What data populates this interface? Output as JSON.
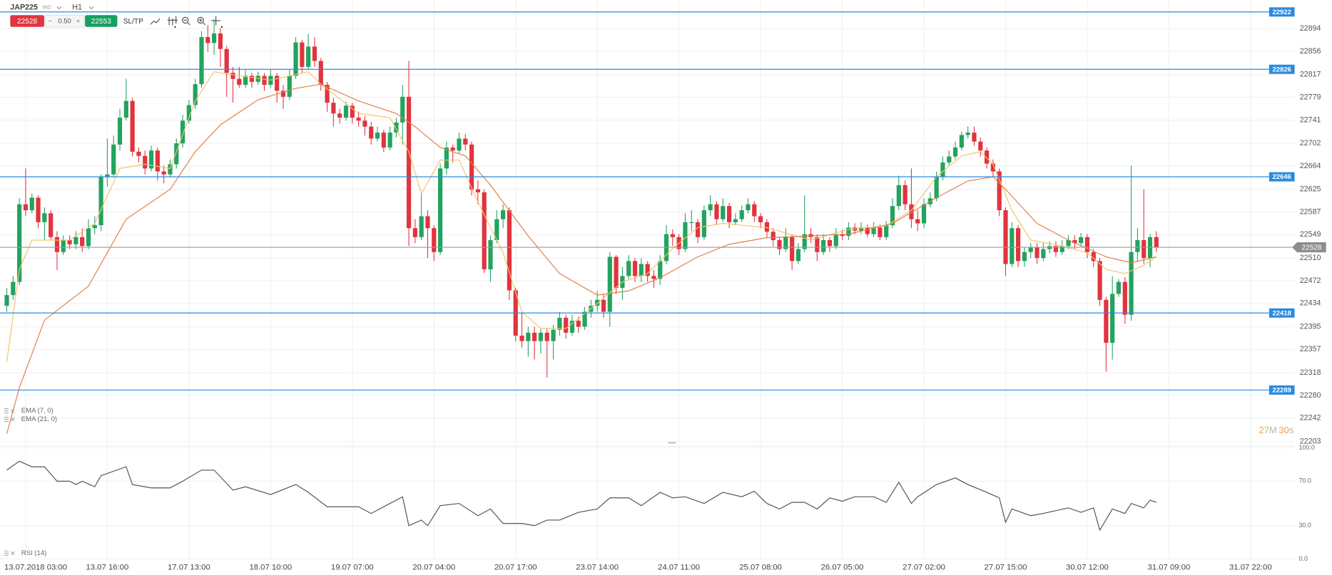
{
  "header": {
    "symbol": "JAP225",
    "badge": "IND",
    "timeframe": "H1",
    "sell": 22528,
    "spread": "0.50",
    "buy": 22553,
    "sltp": "SL/TP",
    "countdown": [
      "27",
      "M",
      "30",
      "s"
    ]
  },
  "chart_data": [
    {
      "type": "candlestick",
      "open": [
        22430,
        22448,
        22470,
        22600,
        22590,
        22611,
        22570,
        22585,
        22545,
        22520,
        22540,
        22533,
        22545,
        22530,
        22560,
        22565,
        22646,
        22650,
        22700,
        22745,
        22773,
        22688,
        22681,
        22660,
        22690,
        22655,
        22650,
        22667,
        22702,
        22740,
        22766,
        22801,
        22880,
        22870,
        22886,
        22860,
        22820,
        22810,
        22800,
        22815,
        22805,
        22815,
        22800,
        22815,
        22790,
        22780,
        22815,
        22871,
        22830,
        22864,
        22840,
        22800,
        22770,
        22752,
        22745,
        22765,
        22745,
        22740,
        22730,
        22710,
        22720,
        22695,
        22720,
        22737,
        22780,
        22560,
        22545,
        22580,
        22560,
        22520,
        22660,
        22695,
        22690,
        22710,
        22700,
        22625,
        22620,
        22491,
        22540,
        22575,
        22590,
        22456,
        22380,
        22371,
        22385,
        22371,
        22385,
        22371,
        22390,
        22410,
        22385,
        22405,
        22395,
        22420,
        22430,
        22440,
        22420,
        22512,
        22460,
        22480,
        22505,
        22480,
        22500,
        22480,
        22475,
        22505,
        22550,
        22545,
        22525,
        22570,
        22570,
        22545,
        22590,
        22600,
        22575,
        22597,
        22570,
        22575,
        22590,
        22600,
        22580,
        22570,
        22554,
        22540,
        22525,
        22545,
        22505,
        22525,
        22550,
        22545,
        22520,
        22540,
        22530,
        22550,
        22547,
        22561,
        22556,
        22561,
        22550,
        22561,
        22545,
        22565,
        22597,
        22632,
        22600,
        22575,
        22568,
        22600,
        22610,
        22646,
        22670,
        22680,
        22695,
        22716,
        22720,
        22705,
        22690,
        22668,
        22655,
        22590,
        22500,
        22560,
        22505,
        22520,
        22528,
        22510,
        22525,
        22530,
        22520,
        22530,
        22540,
        22535,
        22545,
        22520,
        22505,
        22440,
        22368,
        22450,
        22470,
        22415,
        22520,
        22540,
        22510,
        22545
      ],
      "high": [
        22460,
        22480,
        22610,
        22660,
        22618,
        22615,
        22595,
        22590,
        22555,
        22548,
        22548,
        22555,
        22560,
        22575,
        22580,
        22650,
        22710,
        22715,
        22760,
        22810,
        22778,
        22695,
        22690,
        22698,
        22695,
        22665,
        22675,
        22710,
        22750,
        22775,
        22810,
        22890,
        22900,
        22910,
        22895,
        22865,
        22830,
        22830,
        22825,
        22820,
        22822,
        22820,
        22825,
        22820,
        22800,
        22825,
        22880,
        22875,
        22885,
        22880,
        22845,
        22805,
        22778,
        22760,
        22772,
        22770,
        22755,
        22748,
        22738,
        22730,
        22725,
        22730,
        22745,
        22800,
        22840,
        22575,
        22620,
        22590,
        22565,
        22668,
        22705,
        22700,
        22720,
        22718,
        22705,
        22640,
        22625,
        22548,
        22590,
        22600,
        22595,
        22460,
        22420,
        22395,
        22395,
        22392,
        22392,
        22398,
        22420,
        22415,
        22415,
        22412,
        22428,
        22440,
        22455,
        22450,
        22520,
        22515,
        22495,
        22515,
        22510,
        22510,
        22505,
        22490,
        22515,
        22565,
        22558,
        22550,
        22585,
        22590,
        22575,
        22598,
        22615,
        22605,
        22610,
        22602,
        22585,
        22598,
        22610,
        22605,
        22585,
        22575,
        22560,
        22545,
        22560,
        22550,
        22535,
        22615,
        22560,
        22550,
        22550,
        22545,
        22560,
        22558,
        22570,
        22568,
        22570,
        22566,
        22570,
        22566,
        22572,
        22610,
        22648,
        22640,
        22660,
        22590,
        22610,
        22620,
        22655,
        22680,
        22690,
        22705,
        22722,
        22730,
        22730,
        22712,
        22695,
        22675,
        22660,
        22595,
        22570,
        22565,
        22528,
        22535,
        22535,
        22535,
        22538,
        22538,
        22540,
        22548,
        22548,
        22552,
        22550,
        22525,
        22510,
        22445,
        22480,
        22475,
        22478,
        22665,
        22560,
        22625,
        22550,
        22555
      ],
      "low": [
        22420,
        22440,
        22465,
        22580,
        22585,
        22560,
        22540,
        22540,
        22490,
        22515,
        22525,
        22525,
        22520,
        22525,
        22550,
        22555,
        22630,
        22645,
        22690,
        22740,
        22680,
        22670,
        22650,
        22655,
        22640,
        22635,
        22645,
        22660,
        22695,
        22735,
        22760,
        22795,
        22855,
        22850,
        22830,
        22780,
        22770,
        22795,
        22795,
        22795,
        22800,
        22790,
        22795,
        22770,
        22760,
        22775,
        22810,
        22820,
        22825,
        22830,
        22790,
        22755,
        22730,
        22735,
        22740,
        22735,
        22730,
        22715,
        22700,
        22705,
        22688,
        22690,
        22712,
        22700,
        22530,
        22535,
        22540,
        22510,
        22505,
        22515,
        22650,
        22670,
        22685,
        22690,
        22615,
        22600,
        22485,
        22470,
        22535,
        22560,
        22440,
        22370,
        22360,
        22345,
        22340,
        22350,
        22310,
        22340,
        22380,
        22375,
        22380,
        22385,
        22390,
        22410,
        22420,
        22410,
        22395,
        22450,
        22440,
        22475,
        22470,
        22470,
        22470,
        22460,
        22465,
        22500,
        22530,
        22515,
        22520,
        22555,
        22535,
        22540,
        22580,
        22565,
        22570,
        22560,
        22565,
        22570,
        22585,
        22570,
        22560,
        22545,
        22530,
        22515,
        22520,
        22490,
        22500,
        22520,
        22535,
        22505,
        22515,
        22520,
        22525,
        22540,
        22540,
        22550,
        22550,
        22545,
        22545,
        22540,
        22540,
        22560,
        22590,
        22590,
        22560,
        22555,
        22560,
        22595,
        22605,
        22640,
        22665,
        22675,
        22690,
        22710,
        22698,
        22680,
        22660,
        22645,
        22580,
        22480,
        22495,
        22495,
        22495,
        22510,
        22500,
        22505,
        22518,
        22512,
        22515,
        22525,
        22525,
        22530,
        22510,
        22495,
        22430,
        22320,
        22340,
        22445,
        22400,
        22405,
        22505,
        22500,
        22495,
        22520
      ],
      "close": [
        22448,
        22470,
        22600,
        22590,
        22611,
        22570,
        22585,
        22545,
        22520,
        22540,
        22533,
        22545,
        22530,
        22560,
        22565,
        22646,
        22650,
        22700,
        22745,
        22773,
        22688,
        22681,
        22660,
        22690,
        22655,
        22650,
        22667,
        22702,
        22740,
        22766,
        22801,
        22880,
        22870,
        22886,
        22860,
        22820,
        22810,
        22800,
        22815,
        22805,
        22815,
        22800,
        22815,
        22790,
        22780,
        22815,
        22871,
        22830,
        22864,
        22840,
        22800,
        22770,
        22752,
        22745,
        22765,
        22745,
        22740,
        22730,
        22710,
        22720,
        22695,
        22720,
        22737,
        22780,
        22560,
        22545,
        22580,
        22560,
        22520,
        22660,
        22695,
        22690,
        22710,
        22700,
        22625,
        22620,
        22491,
        22540,
        22575,
        22590,
        22456,
        22380,
        22371,
        22385,
        22371,
        22385,
        22371,
        22390,
        22410,
        22385,
        22405,
        22395,
        22420,
        22430,
        22440,
        22420,
        22512,
        22460,
        22480,
        22505,
        22480,
        22500,
        22480,
        22475,
        22505,
        22550,
        22545,
        22525,
        22570,
        22570,
        22545,
        22590,
        22600,
        22575,
        22597,
        22570,
        22575,
        22590,
        22600,
        22580,
        22570,
        22554,
        22540,
        22525,
        22545,
        22505,
        22525,
        22550,
        22545,
        22520,
        22540,
        22530,
        22550,
        22547,
        22561,
        22556,
        22561,
        22550,
        22561,
        22545,
        22565,
        22597,
        22632,
        22600,
        22575,
        22568,
        22600,
        22610,
        22646,
        22670,
        22680,
        22695,
        22716,
        22720,
        22705,
        22690,
        22668,
        22655,
        22590,
        22500,
        22560,
        22505,
        22520,
        22528,
        22510,
        22525,
        22530,
        22520,
        22530,
        22540,
        22535,
        22545,
        22520,
        22505,
        22440,
        22368,
        22450,
        22470,
        22415,
        22520,
        22540,
        22510,
        22545,
        22528
      ],
      "up_color": "#22a35f",
      "down_color": "#e2333e",
      "series": [
        {
          "name": "EMA (7, 0)",
          "color": "#f2c46d",
          "x": [
            0,
            2,
            4,
            10,
            14,
            18,
            22,
            26,
            30,
            33,
            37,
            42,
            48,
            50,
            56,
            61,
            64,
            66,
            69,
            72,
            75,
            79,
            82,
            85,
            89,
            94,
            98,
            102,
            106,
            110,
            114,
            121,
            128,
            134,
            140,
            144,
            148,
            152,
            155,
            157,
            160,
            163,
            168,
            172,
            175,
            178,
            181,
            183
          ],
          "values": [
            22336,
            22491,
            22540,
            22540,
            22568,
            22660,
            22667,
            22660,
            22773,
            22822,
            22815,
            22808,
            22822,
            22801,
            22752,
            22745,
            22688,
            22618,
            22674,
            22674,
            22604,
            22519,
            22420,
            22392,
            22392,
            22434,
            22470,
            22484,
            22526,
            22561,
            22568,
            22561,
            22540,
            22558,
            22564,
            22590,
            22646,
            22681,
            22688,
            22667,
            22590,
            22540,
            22530,
            22519,
            22491,
            22484,
            22498,
            22512
          ]
        },
        {
          "name": "EMA (21, 0)",
          "color": "#e0804a",
          "x": [
            0,
            2,
            6,
            13,
            19,
            26,
            30,
            34,
            40,
            46,
            50,
            56,
            62,
            65,
            69,
            73,
            77,
            83,
            88,
            94,
            99,
            104,
            110,
            115,
            121,
            128,
            134,
            141,
            148,
            153,
            157,
            159,
            164,
            169,
            175,
            179,
            183
          ],
          "values": [
            22216,
            22293,
            22406,
            22463,
            22575,
            22625,
            22688,
            22733,
            22775,
            22794,
            22801,
            22773,
            22752,
            22730,
            22695,
            22681,
            22632,
            22547,
            22484,
            22448,
            22455,
            22477,
            22512,
            22533,
            22544,
            22547,
            22550,
            22568,
            22611,
            22639,
            22646,
            22625,
            22568,
            22540,
            22512,
            22502,
            22512
          ]
        }
      ],
      "ylim": [
        22195,
        22942
      ],
      "yticks": [
        22894,
        22856,
        22817,
        22779,
        22741,
        22702,
        22664,
        22625,
        22587,
        22549,
        22510,
        22472,
        22434,
        22395,
        22357,
        22318,
        22280,
        22242,
        22203
      ],
      "xticks": [
        {
          "value": 3,
          "label": "13.07.2018 03:00"
        },
        {
          "value": 16,
          "label": "13.07 16:00"
        },
        {
          "value": 29,
          "label": "17.07 13:00"
        },
        {
          "value": 42,
          "label": "18.07 10:00"
        },
        {
          "value": 55,
          "label": "19.07 07:00"
        },
        {
          "value": 68,
          "label": "20.07 04:00"
        },
        {
          "value": 81,
          "label": "20.07 17:00"
        },
        {
          "value": 94,
          "label": "23.07 14:00"
        },
        {
          "value": 107,
          "label": "24.07 11:00"
        },
        {
          "value": 120,
          "label": "25.07 08:00"
        },
        {
          "value": 133,
          "label": "26.07 05:00"
        },
        {
          "value": 146,
          "label": "27.07 02:00"
        },
        {
          "value": 159,
          "label": "27.07 15:00"
        },
        {
          "value": 172,
          "label": "30.07 12:00"
        },
        {
          "value": 185,
          "label": "31.07 09:00"
        },
        {
          "value": 198,
          "label": "31.07 22:00"
        }
      ],
      "levels": [
        22922,
        22826,
        22646,
        22418,
        22289
      ],
      "level_color": "#2a8be0",
      "current": 22528,
      "grid": true
    },
    {
      "type": "line",
      "series": [
        {
          "name": "RSI (14)",
          "color": "#555555",
          "x": [
            0,
            2,
            4,
            6,
            8,
            10,
            11,
            12,
            14,
            15,
            19,
            20,
            23,
            26,
            28,
            31,
            33,
            36,
            38,
            42,
            46,
            48,
            51,
            56,
            58,
            61,
            63,
            64,
            66,
            67,
            69,
            72,
            75,
            77,
            79,
            82,
            84,
            86,
            88,
            91,
            94,
            96,
            99,
            101,
            104,
            106,
            108,
            111,
            114,
            117,
            119,
            121,
            123,
            125,
            127,
            129,
            131,
            133,
            135,
            138,
            140,
            142,
            144,
            145,
            148,
            151,
            153,
            156,
            158,
            159,
            160,
            163,
            165,
            169,
            171,
            173,
            174,
            176,
            178,
            179,
            181,
            182,
            183
          ],
          "values": [
            80,
            88,
            83,
            83,
            70,
            70,
            67,
            70,
            65,
            75,
            83,
            67,
            64,
            64,
            70,
            80,
            80,
            62,
            65,
            58,
            67,
            60,
            47,
            47,
            41,
            50,
            56,
            30,
            35,
            30,
            48,
            50,
            39,
            45,
            32,
            32,
            30,
            35,
            35,
            42,
            45,
            55,
            55,
            48,
            60,
            55,
            56,
            50,
            60,
            56,
            61,
            50,
            45,
            51,
            51,
            45,
            55,
            52,
            56,
            56,
            51,
            69,
            50,
            56,
            67,
            73,
            67,
            60,
            55,
            33,
            45,
            39,
            41,
            46,
            42,
            46,
            26,
            45,
            41,
            50,
            46,
            53,
            51
          ]
        }
      ],
      "ylim": [
        0,
        100
      ],
      "yticks": [
        {
          "value": 100,
          "label": "100.0"
        },
        {
          "value": 70,
          "label": "70.0"
        },
        {
          "value": 30,
          "label": "30.0"
        },
        {
          "value": 0,
          "label": "0.0"
        }
      ],
      "grid": true
    }
  ]
}
